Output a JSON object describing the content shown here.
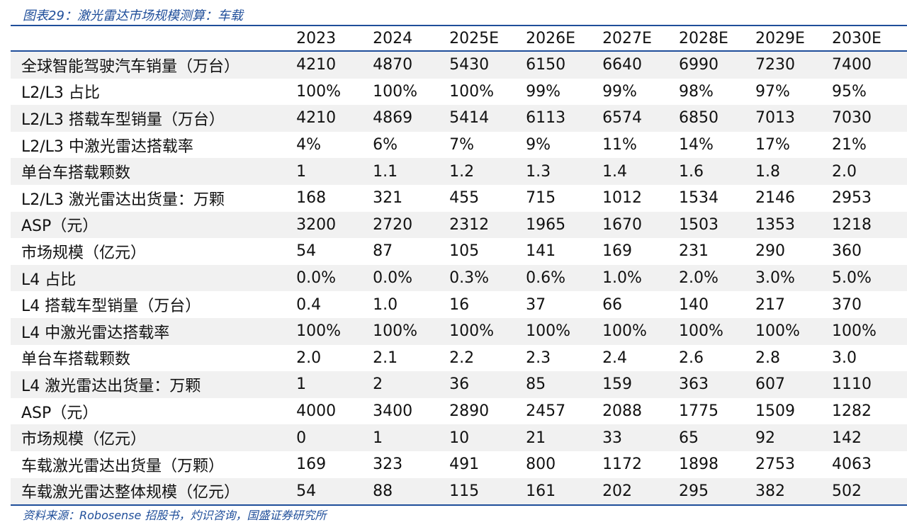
{
  "title": "图表29：激光雷达市场规模测算：车载",
  "columns": [
    "2023",
    "2024",
    "2025E",
    "2026E",
    "2027E",
    "2028E",
    "2029E",
    "2030E"
  ],
  "rows": [
    {
      "label": "全球智能驾驶汽车销量（万台）",
      "values": [
        "4210",
        "4870",
        "5430",
        "6150",
        "6640",
        "6990",
        "7230",
        "7400"
      ]
    },
    {
      "label": "L2/L3 占比",
      "values": [
        "100%",
        "100%",
        "100%",
        "99%",
        "99%",
        "98%",
        "97%",
        "95%"
      ]
    },
    {
      "label": "L2/L3 搭载车型销量（万台）",
      "values": [
        "4210",
        "4869",
        "5414",
        "6113",
        "6574",
        "6850",
        "7013",
        "7030"
      ]
    },
    {
      "label": "L2/L3 中激光雷达搭载率",
      "values": [
        "4%",
        "6%",
        "7%",
        "9%",
        "11%",
        "14%",
        "17%",
        "21%"
      ]
    },
    {
      "label": "单台车搭载颗数",
      "values": [
        "1",
        "1.1",
        "1.2",
        "1.3",
        "1.4",
        "1.6",
        "1.8",
        "2.0"
      ]
    },
    {
      "label": "L2/L3 激光雷达出货量：万颗",
      "values": [
        "168",
        "321",
        "455",
        "715",
        "1012",
        "1534",
        "2146",
        "2953"
      ]
    },
    {
      "label": "ASP（元）",
      "values": [
        "3200",
        "2720",
        "2312",
        "1965",
        "1670",
        "1503",
        "1353",
        "1218"
      ]
    },
    {
      "label": "市场规模（亿元）",
      "values": [
        "54",
        "87",
        "105",
        "141",
        "169",
        "231",
        "290",
        "360"
      ]
    },
    {
      "label": "L4 占比",
      "values": [
        "0.0%",
        "0.0%",
        "0.3%",
        "0.6%",
        "1.0%",
        "2.0%",
        "3.0%",
        "5.0%"
      ]
    },
    {
      "label": "L4 搭载车型销量（万台）",
      "values": [
        "0.4",
        "1.0",
        "16",
        "37",
        "66",
        "140",
        "217",
        "370"
      ]
    },
    {
      "label": "L4 中激光雷达搭载率",
      "values": [
        "100%",
        "100%",
        "100%",
        "100%",
        "100%",
        "100%",
        "100%",
        "100%"
      ]
    },
    {
      "label": "单台车搭载颗数",
      "values": [
        "2.0",
        "2.1",
        "2.2",
        "2.3",
        "2.4",
        "2.6",
        "2.8",
        "3.0"
      ]
    },
    {
      "label": "L4 激光雷达出货量：万颗",
      "values": [
        "1",
        "2",
        "36",
        "85",
        "159",
        "363",
        "607",
        "1110"
      ]
    },
    {
      "label": "ASP（元）",
      "values": [
        "4000",
        "3400",
        "2890",
        "2457",
        "2088",
        "1775",
        "1509",
        "1282"
      ]
    },
    {
      "label": "市场规模（亿元）",
      "values": [
        "0",
        "1",
        "10",
        "21",
        "33",
        "65",
        "92",
        "142"
      ]
    },
    {
      "label": "车载激光雷达出货量（万颗）",
      "values": [
        "169",
        "323",
        "491",
        "800",
        "1172",
        "1898",
        "2753",
        "4063"
      ]
    },
    {
      "label": "车载激光雷达整体规模（亿元）",
      "values": [
        "54",
        "88",
        "115",
        "161",
        "202",
        "295",
        "382",
        "502"
      ]
    }
  ],
  "source": "资料来源：Robosense 招股书，灼识咨询，国盛证券研究所"
}
